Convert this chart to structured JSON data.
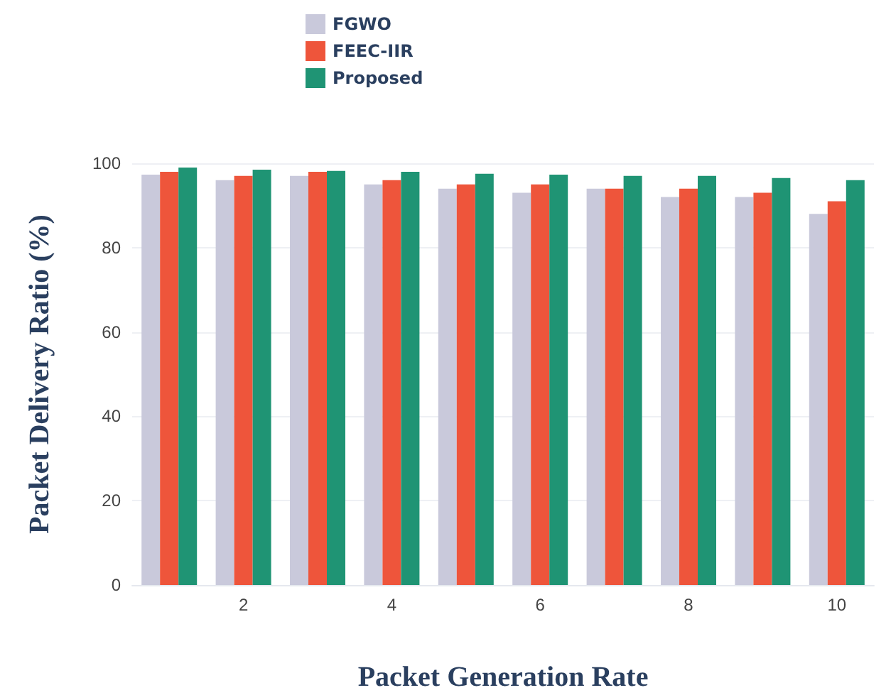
{
  "chart_data": {
    "type": "bar",
    "xlabel": "Packet Generation Rate",
    "ylabel": "Packet Delivery Ratio (%)",
    "x": [
      1,
      2,
      3,
      4,
      5,
      6,
      7,
      8,
      9,
      10
    ],
    "xlim": [
      0.5,
      10.5
    ],
    "xticks": [
      2,
      4,
      6,
      8,
      10
    ],
    "ylim": [
      0,
      100
    ],
    "yticks": [
      0,
      20,
      40,
      60,
      80,
      100
    ],
    "series": [
      {
        "name": "FGWO",
        "color": "#c9c9db",
        "values": [
          97.3,
          96,
          97,
          95,
          94,
          93,
          94,
          92,
          92,
          88
        ]
      },
      {
        "name": "FEEC-IIR",
        "color": "#ee553b",
        "values": [
          98,
          97,
          98,
          96,
          95,
          95,
          94,
          94,
          93,
          91
        ]
      },
      {
        "name": "Proposed",
        "color": "#1f9474",
        "values": [
          99,
          98.5,
          98.2,
          98,
          97.5,
          97.3,
          97,
          97,
          96.5,
          96
        ]
      }
    ],
    "grid": "y",
    "legend": "top left"
  }
}
